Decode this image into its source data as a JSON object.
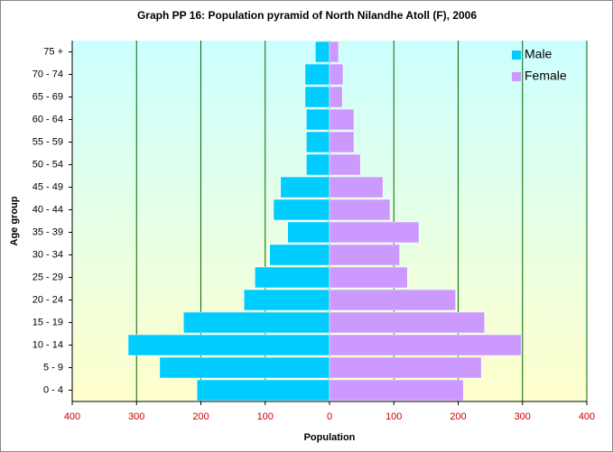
{
  "chart_data": {
    "type": "pyramid",
    "title": "Graph PP 16: Population pyramid of North Nilandhe Atoll (F), 2006",
    "x_label": "Population",
    "y_label": "Age group",
    "categories": [
      "0 - 4",
      "5 - 9",
      "10 - 14",
      "15 - 19",
      "20 - 24",
      "25 - 29",
      "30 - 34",
      "35 - 39",
      "40 - 44",
      "45 - 49",
      "50 - 54",
      "55 - 59",
      "60 - 64",
      "65 - 69",
      "70 - 74",
      "75 +"
    ],
    "series": [
      {
        "name": "Male",
        "color": "#00ccff",
        "values": [
          -206,
          -264,
          -313,
          -227,
          -133,
          -116,
          -93,
          -65,
          -87,
          -76,
          -36,
          -36,
          -36,
          -38,
          -38,
          -22
        ]
      },
      {
        "name": "Female",
        "color": "#cc99ff",
        "values": [
          208,
          236,
          298,
          241,
          196,
          121,
          109,
          139,
          94,
          83,
          48,
          38,
          38,
          20,
          21,
          14
        ]
      }
    ],
    "xlim": [
      -400,
      400
    ],
    "xticks": [
      {
        "value": -400,
        "label": "400"
      },
      {
        "value": -300,
        "label": "300"
      },
      {
        "value": -200,
        "label": "200"
      },
      {
        "value": -100,
        "label": "100"
      },
      0,
      100,
      200,
      300,
      400
    ],
    "grid": true,
    "legend": "upper right"
  }
}
